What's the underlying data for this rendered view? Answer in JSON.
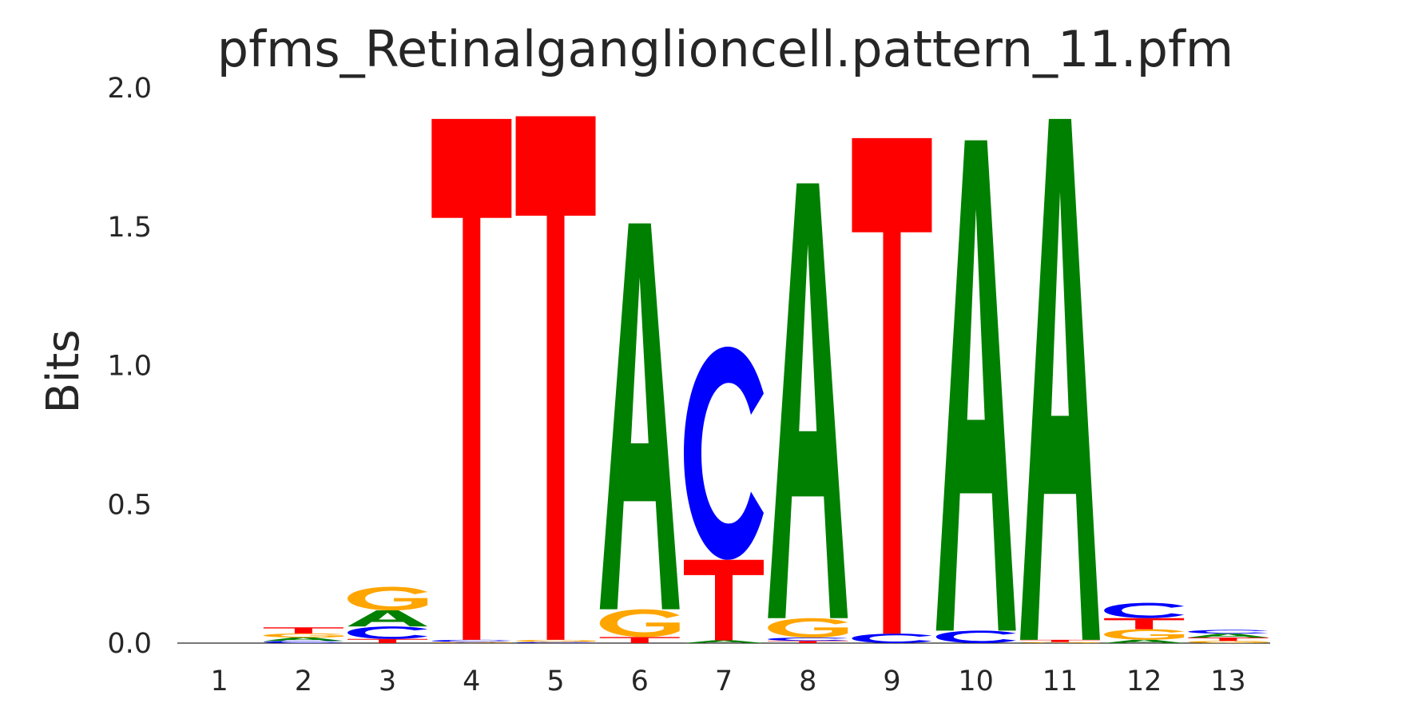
{
  "chart_data": {
    "type": "sequence-logo",
    "title": "pfms_Retinalganglioncell.pattern_11.pfm",
    "xlabel": "",
    "ylabel": "Bits",
    "ylim": [
      0,
      2.0
    ],
    "yticks": [
      "0.0",
      "0.5",
      "1.0",
      "1.5",
      "2.0"
    ],
    "positions": [
      "1",
      "2",
      "3",
      "4",
      "5",
      "6",
      "7",
      "8",
      "9",
      "10",
      "11",
      "12",
      "13"
    ],
    "grid": false,
    "colors": {
      "A": "#008000",
      "C": "#0000ff",
      "G": "#ffa500",
      "T": "#ff0000"
    },
    "stacks": [
      [],
      [
        {
          "base": "C",
          "bits": 0.008
        },
        {
          "base": "A",
          "bits": 0.012
        },
        {
          "base": "G",
          "bits": 0.015
        },
        {
          "base": "T",
          "bits": 0.022
        }
      ],
      [
        {
          "base": "T",
          "bits": 0.015
        },
        {
          "base": "C",
          "bits": 0.045
        },
        {
          "base": "A",
          "bits": 0.058
        },
        {
          "base": "G",
          "bits": 0.085
        }
      ],
      [
        {
          "base": "G",
          "bits": 0.004
        },
        {
          "base": "C",
          "bits": 0.008
        },
        {
          "base": "T",
          "bits": 1.876
        }
      ],
      [
        {
          "base": "C",
          "bits": 0.004
        },
        {
          "base": "G",
          "bits": 0.008
        },
        {
          "base": "T",
          "bits": 1.886
        }
      ],
      [
        {
          "base": "T",
          "bits": 0.022
        },
        {
          "base": "G",
          "bits": 0.1
        },
        {
          "base": "A",
          "bits": 1.39
        }
      ],
      [
        {
          "base": "A",
          "bits": 0.01
        },
        {
          "base": "T",
          "bits": 0.29
        },
        {
          "base": "C",
          "bits": 0.768
        }
      ],
      [
        {
          "base": "T",
          "bits": 0.008
        },
        {
          "base": "C",
          "bits": 0.012
        },
        {
          "base": "G",
          "bits": 0.07
        },
        {
          "base": "A",
          "bits": 1.566
        }
      ],
      [
        {
          "base": "C",
          "bits": 0.034
        },
        {
          "base": "T",
          "bits": 1.785
        }
      ],
      [
        {
          "base": "C",
          "bits": 0.045
        },
        {
          "base": "A",
          "bits": 1.766
        }
      ],
      [
        {
          "base": "G",
          "bits": 0.004
        },
        {
          "base": "T",
          "bits": 0.008
        },
        {
          "base": "A",
          "bits": 1.876
        }
      ],
      [
        {
          "base": "A",
          "bits": 0.012
        },
        {
          "base": "G",
          "bits": 0.038
        },
        {
          "base": "T",
          "bits": 0.04
        },
        {
          "base": "C",
          "bits": 0.055
        }
      ],
      [
        {
          "base": "G",
          "bits": 0.008
        },
        {
          "base": "T",
          "bits": 0.012
        },
        {
          "base": "A",
          "bits": 0.014
        },
        {
          "base": "C",
          "bits": 0.014
        }
      ]
    ]
  }
}
